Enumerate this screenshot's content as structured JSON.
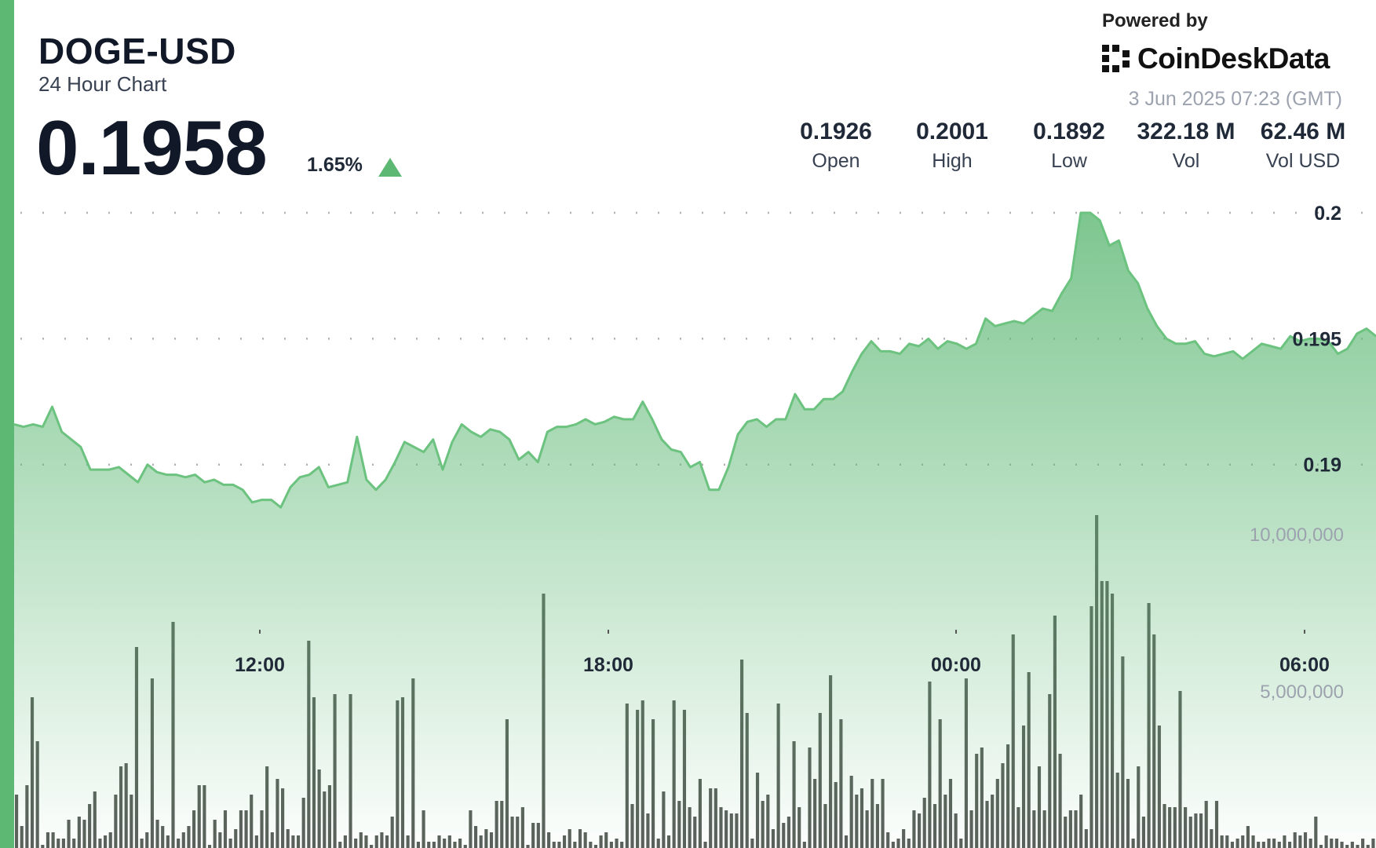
{
  "header": {
    "ticker": "DOGE-USD",
    "subtitle": "24 Hour Chart",
    "price": "0.1958",
    "change": "1.65%",
    "powered_by": "Powered by",
    "brand": "CoinDeskData",
    "timestamp": "3 Jun 2025 07:23 (GMT)"
  },
  "stats": [
    {
      "value": "0.1926",
      "label": "Open"
    },
    {
      "value": "0.2001",
      "label": "High"
    },
    {
      "value": "0.1892",
      "label": "Low"
    },
    {
      "value": "322.18 M",
      "label": "Vol"
    },
    {
      "value": "62.46 M",
      "label": "Vol USD"
    }
  ],
  "colors": {
    "accent": "#5db874",
    "line": "#6cc27f",
    "volume": "#5a5f5a"
  },
  "chart_data": {
    "type": "area",
    "title": "DOGE-USD",
    "price_axis": {
      "ticks": [
        "0.2",
        "0.195",
        "0.19"
      ],
      "tick_values": [
        0.2,
        0.195,
        0.19
      ],
      "range": [
        0.186,
        0.2005
      ]
    },
    "volume_axis": {
      "ticks": [
        "10,000,000",
        "5,000,000"
      ],
      "tick_values": [
        10000000,
        5000000
      ],
      "range": [
        0,
        13000000
      ]
    },
    "x_axis": {
      "ticks": [
        "12:00",
        "18:00",
        "00:00",
        "06:00"
      ]
    },
    "price_series": [
      0.1916,
      0.1915,
      0.1916,
      0.1915,
      0.1923,
      0.1913,
      0.191,
      0.1907,
      0.1898,
      0.1898,
      0.1898,
      0.1899,
      0.1896,
      0.1893,
      0.19,
      0.1897,
      0.1896,
      0.1896,
      0.1895,
      0.1896,
      0.1893,
      0.1894,
      0.1892,
      0.1892,
      0.189,
      0.1885,
      0.1886,
      0.1886,
      0.1883,
      0.1891,
      0.1895,
      0.1896,
      0.1899,
      0.1891,
      0.1892,
      0.1893,
      0.1911,
      0.1894,
      0.189,
      0.1894,
      0.1901,
      0.1909,
      0.1907,
      0.1905,
      0.191,
      0.1898,
      0.1909,
      0.1916,
      0.1913,
      0.1911,
      0.1914,
      0.1913,
      0.191,
      0.1902,
      0.1905,
      0.1901,
      0.1913,
      0.1915,
      0.1915,
      0.1916,
      0.1918,
      0.1916,
      0.1917,
      0.1919,
      0.1918,
      0.1918,
      0.1925,
      0.1918,
      0.191,
      0.1906,
      0.1905,
      0.1899,
      0.1901,
      0.189,
      0.189,
      0.1899,
      0.1912,
      0.1917,
      0.1918,
      0.1915,
      0.1918,
      0.1918,
      0.1928,
      0.1922,
      0.1922,
      0.1926,
      0.1926,
      0.1929,
      0.1937,
      0.1944,
      0.1949,
      0.1945,
      0.1945,
      0.1944,
      0.1948,
      0.1947,
      0.195,
      0.1946,
      0.1949,
      0.1948,
      0.1946,
      0.1948,
      0.1958,
      0.1955,
      0.1956,
      0.1957,
      0.1956,
      0.1959,
      0.1962,
      0.1961,
      0.1968,
      0.1974,
      0.2,
      0.2,
      0.1997,
      0.1987,
      0.1989,
      0.1977,
      0.1972,
      0.1962,
      0.1955,
      0.195,
      0.1948,
      0.1948,
      0.1949,
      0.1944,
      0.1943,
      0.1944,
      0.1945,
      0.1942,
      0.1945,
      0.1948,
      0.1947,
      0.1946,
      0.1951,
      0.1949,
      0.195,
      0.195,
      0.1949,
      0.1944,
      0.1946,
      0.1952,
      0.1954,
      0.1951
    ],
    "volume_series": [
      1700000,
      700000,
      2000000,
      4800000,
      3400000,
      100000,
      500000,
      500000,
      300000,
      300000,
      900000,
      300000,
      1000000,
      900000,
      1400000,
      1800000,
      300000,
      400000,
      500000,
      1700000,
      2600000,
      2700000,
      1700000,
      6400000,
      300000,
      500000,
      5400000,
      900000,
      700000,
      400000,
      7200000,
      300000,
      500000,
      700000,
      1200000,
      2000000,
      2000000,
      100000,
      900000,
      500000,
      1200000,
      300000,
      600000,
      1200000,
      1200000,
      1700000,
      400000,
      1200000,
      2600000,
      500000,
      2200000,
      1900000,
      600000,
      400000,
      400000,
      1600000,
      6600000,
      4800000,
      2500000,
      1800000,
      2000000,
      4900000,
      200000,
      400000,
      4900000,
      300000,
      500000,
      400000,
      100000,
      400000,
      500000,
      400000,
      1000000,
      4700000,
      4800000,
      400000,
      5400000,
      200000,
      1200000,
      200000,
      200000,
      400000,
      300000,
      400000,
      200000,
      300000,
      100000,
      1200000,
      700000,
      400000,
      600000,
      500000,
      1500000,
      1500000,
      4100000,
      1000000,
      1000000,
      1300000,
      100000,
      800000,
      800000,
      8100000,
      500000,
      200000,
      200000,
      400000,
      600000,
      200000,
      600000,
      500000,
      200000,
      100000,
      400000,
      500000,
      200000,
      300000,
      200000,
      4600000,
      1400000,
      4400000,
      4700000,
      1100000,
      4100000,
      300000,
      1800000,
      400000,
      4700000,
      1500000,
      4400000,
      1300000,
      1000000,
      2200000,
      200000,
      1900000,
      1900000,
      1300000,
      1200000,
      1100000,
      1100000,
      6000000,
      4300000,
      300000,
      2400000,
      1500000,
      1700000,
      600000,
      4600000,
      800000,
      1000000,
      3400000,
      1300000,
      200000,
      3200000,
      2200000,
      4300000,
      1400000,
      5500000,
      2100000,
      4100000,
      400000,
      2300000,
      1700000,
      1900000,
      1200000,
      2200000,
      1400000,
      2200000,
      500000,
      200000,
      300000,
      600000,
      300000,
      1200000,
      1100000,
      1600000,
      5300000,
      1400000,
      4100000,
      1700000,
      2200000,
      1100000,
      300000,
      5400000,
      1200000,
      3000000,
      3200000,
      1500000,
      1700000,
      2200000,
      2700000,
      3300000,
      6800000,
      1300000,
      3900000,
      5600000,
      1200000,
      2600000,
      1200000,
      4900000,
      7400000,
      3000000,
      1000000,
      1200000,
      1200000,
      1700000,
      600000,
      7700000,
      10600000,
      8500000,
      8500000,
      8100000,
      2400000,
      6100000,
      2200000,
      300000,
      2600000,
      1000000,
      7800000,
      6800000,
      3900000,
      1400000,
      1300000,
      1300000,
      5000000,
      1300000,
      1000000,
      1100000,
      1100000,
      1500000,
      600000,
      1500000,
      400000,
      400000,
      200000,
      300000,
      400000,
      700000,
      400000,
      200000,
      200000,
      300000,
      300000,
      200000,
      400000,
      200000,
      500000,
      400000,
      500000,
      300000,
      1000000,
      100000,
      400000,
      300000,
      300000,
      200000,
      100000,
      200000,
      100000,
      300000,
      100000,
      300000
    ]
  }
}
